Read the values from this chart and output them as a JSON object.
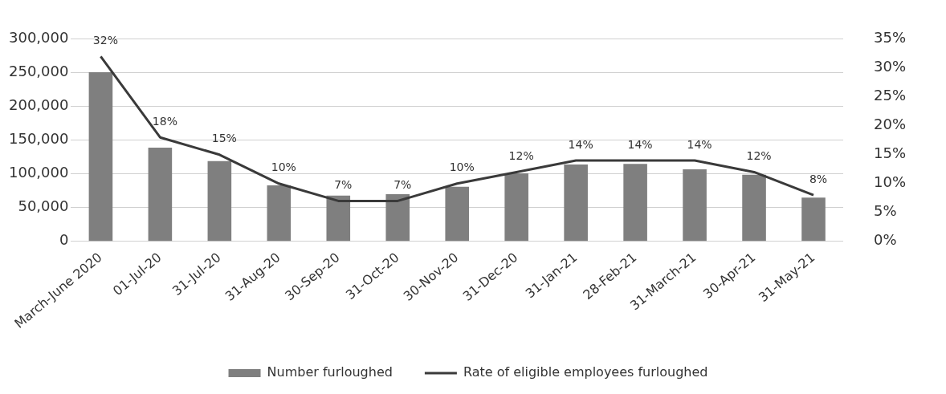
{
  "chart_data": {
    "type": "bar",
    "categories": [
      "March-June 2020",
      "01-Jul-20",
      "31-Jul-20",
      "31-Aug-20",
      "30-Sep-20",
      "31-Oct-20",
      "30-Nov-20",
      "31-Dec-20",
      "31-Jan-21",
      "28-Feb-21",
      "31-March-21",
      "30-Apr-21",
      "31-May-21"
    ],
    "series": [
      {
        "name": "Number furloughed",
        "color": "#7f7f7f",
        "values": [
          251000,
          139000,
          119000,
          83000,
          68000,
          70000,
          81000,
          101000,
          114000,
          115000,
          107000,
          99000,
          65000
        ]
      },
      {
        "name": "Rate of eligible employees furloughed",
        "type": "line",
        "axis": "y2",
        "color": "#3a3a3a",
        "values": [
          32,
          18,
          15,
          10,
          7,
          7,
          10,
          12,
          14,
          14,
          14,
          12,
          8
        ],
        "value_labels": [
          "32%",
          "18%",
          "15%",
          "10%",
          "7%",
          "7%",
          "10%",
          "12%",
          "14%",
          "14%",
          "14%",
          "12%",
          "8%"
        ]
      }
    ],
    "ylim": [
      0,
      300000
    ],
    "yticks": [
      {
        "value": 0,
        "label": "0"
      },
      {
        "value": 50000,
        "label": "50,000"
      },
      {
        "value": 100000,
        "label": "100,000"
      },
      {
        "value": 150000,
        "label": "150,000"
      },
      {
        "value": 200000,
        "label": "200,000"
      },
      {
        "value": 250000,
        "label": "250,000"
      },
      {
        "value": 300000,
        "label": "300,000"
      }
    ],
    "y2lim": [
      0,
      35
    ],
    "y2ticks": [
      {
        "value": 0,
        "label": "0%"
      },
      {
        "value": 5,
        "label": "5%"
      },
      {
        "value": 10,
        "label": "10%"
      },
      {
        "value": 15,
        "label": "15%"
      },
      {
        "value": 20,
        "label": "20%"
      },
      {
        "value": 25,
        "label": "25%"
      },
      {
        "value": 30,
        "label": "30%"
      },
      {
        "value": 35,
        "label": "35%"
      }
    ],
    "grid": "y",
    "legend": "bottom",
    "marker": "none",
    "line_style": "solid"
  }
}
